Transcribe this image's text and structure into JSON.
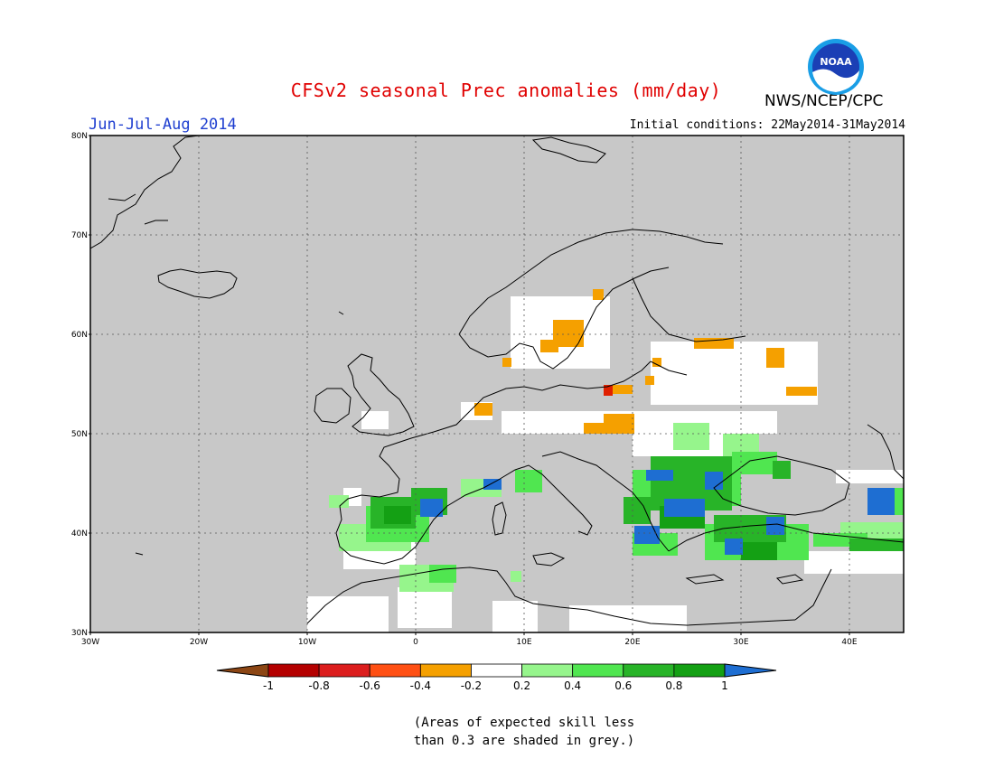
{
  "header": {
    "title": "CFSv2 seasonal Prec anomalies (mm/day)",
    "agency": "NWS/NCEP/CPC",
    "season": "Jun-Jul-Aug 2014",
    "initial_conditions": "Initial conditions: 22May2014-31May2014",
    "logo_text": "NOAA"
  },
  "map": {
    "region": "Europe",
    "lon_range": [
      -30,
      45
    ],
    "lat_range": [
      30,
      80
    ],
    "lat_ticks": [
      "80N",
      "70N",
      "60N",
      "50N",
      "40N",
      "30N"
    ],
    "lon_ticks": [
      "30W",
      "20W",
      "10W",
      "0",
      "10E",
      "20E",
      "30E",
      "40E"
    ],
    "grid": "dotted",
    "colors": {
      "low_skill_grey": "#c8c8c8",
      "neutral": "#ffffff",
      "neg_0_2_0_4": "#f5a000",
      "neg_0_6_0_8": "#e02000",
      "pos_0_2_0_4": "#96f58c",
      "pos_0_4_0_6": "#50e650",
      "pos_0_6_0_8": "#28b428",
      "pos_0_8_1": "#14a014",
      "pos_gt_1": "#1e6ed2"
    }
  },
  "colorbar": {
    "labels": [
      "-1",
      "-0.8",
      "-0.6",
      "-0.4",
      "-0.2",
      "0.2",
      "0.4",
      "0.6",
      "0.8",
      "1"
    ],
    "colors": [
      "#8c4614",
      "#b40000",
      "#dc1e1e",
      "#ff5014",
      "#f5a000",
      "#ffffff",
      "#96f58c",
      "#50e650",
      "#28b428",
      "#14a014",
      "#1e6ed2"
    ]
  },
  "footnote": {
    "line1": "(Areas of expected skill less",
    "line2": "than 0.3 are shaded in grey.)"
  }
}
